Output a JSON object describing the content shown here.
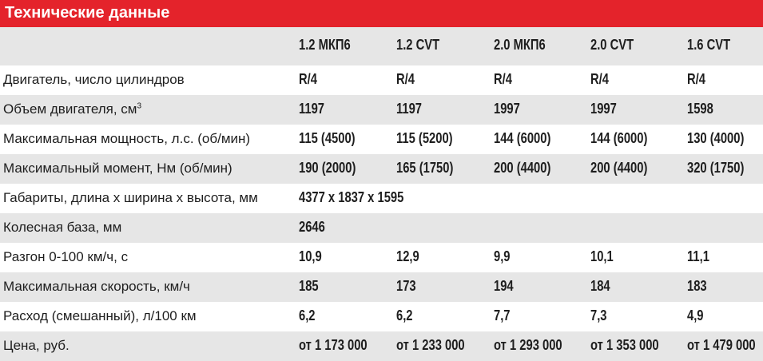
{
  "header": {
    "title": "Технические данные"
  },
  "table": {
    "columns": [
      "1.2 МКП6",
      "1.2 CVT",
      "2.0 МКП6",
      "2.0 CVT",
      "1.6 CVT"
    ],
    "rows": [
      {
        "label": "Двигатель, число цилиндров",
        "cells": [
          "R/4",
          "R/4",
          "R/4",
          "R/4",
          "R/4"
        ]
      },
      {
        "label": "Объем двигателя, см",
        "label_sup": "3",
        "cells": [
          "1197",
          "1197",
          "1997",
          "1997",
          "1598"
        ]
      },
      {
        "label": "Максимальная мощность, л.с. (об/мин)",
        "cells": [
          "115 (4500)",
          "115 (5200)",
          "144 (6000)",
          "144 (6000)",
          "130 (4000)"
        ]
      },
      {
        "label": "Максимальный момент, Нм (об/мин)",
        "cells": [
          "190 (2000)",
          "165 (1750)",
          "200 (4400)",
          "200 (4400)",
          "320 (1750)"
        ]
      },
      {
        "label": "Габариты, длина х ширина х высота, мм",
        "cells": [
          "4377 x 1837 x 1595"
        ]
      },
      {
        "label": "Колесная база, мм",
        "cells": [
          "2646"
        ]
      },
      {
        "label": "Разгон 0-100 км/ч, с",
        "cells": [
          "10,9",
          "12,9",
          "9,9",
          "10,1",
          "11,1"
        ]
      },
      {
        "label": "Максимальная скорость, км/ч",
        "cells": [
          "185",
          "173",
          "194",
          "184",
          "183"
        ]
      },
      {
        "label": "Расход (смешанный), л/100 км",
        "cells": [
          "6,2",
          "6,2",
          "7,7",
          "7,3",
          "4,9"
        ]
      },
      {
        "label": "Цена, руб.",
        "cells": [
          "от 1 173 000",
          "от 1 233 000",
          "от 1 293 000",
          "от 1 353 000",
          "от 1 479 000"
        ]
      }
    ]
  }
}
